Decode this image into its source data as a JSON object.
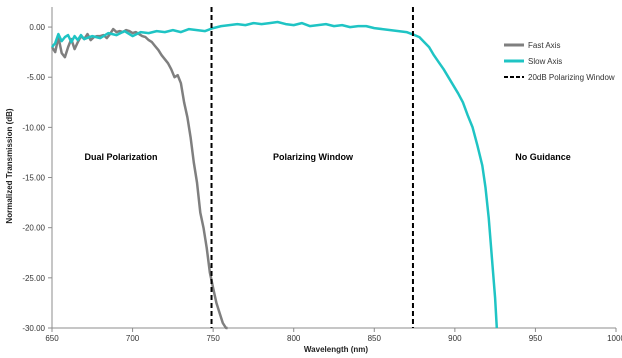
{
  "chart_data": {
    "type": "line",
    "title": "",
    "xlabel": "Wavelength (nm)",
    "ylabel": "Normalized Transmission  (dB)",
    "xlim": [
      650,
      1000
    ],
    "ylim": [
      -30,
      2
    ],
    "x_ticks": [
      "650",
      "700",
      "750",
      "800",
      "850",
      "900",
      "950",
      "1000"
    ],
    "y_ticks": [
      "0.00",
      "-5.00",
      "-10.00",
      "-15.00",
      "-20.00",
      "-25.00",
      "-30.00"
    ],
    "grid": false,
    "legend_position": "right",
    "series": [
      {
        "name": "Fast Axis",
        "color": "#7f7f7f",
        "style": "solid",
        "x": [
          650,
          652,
          654,
          656,
          658,
          660,
          662,
          664,
          666,
          668,
          670,
          672,
          674,
          676,
          678,
          680,
          682,
          684,
          686,
          688,
          690,
          692,
          694,
          696,
          698,
          700,
          702,
          704,
          706,
          708,
          710,
          712,
          714,
          716,
          718,
          720,
          722,
          724,
          726,
          728,
          730,
          732,
          734,
          736,
          738,
          740,
          742,
          744,
          746,
          748,
          750,
          752,
          754,
          756,
          758,
          759
        ],
        "values": [
          -2.0,
          -2.5,
          -1.0,
          -2.6,
          -3.0,
          -2.0,
          -1.2,
          -2.2,
          -1.5,
          -0.9,
          -1.2,
          -0.7,
          -1.3,
          -1.0,
          -0.9,
          -0.9,
          -0.8,
          -1.1,
          -0.7,
          -0.2,
          -0.5,
          -0.4,
          -0.5,
          -0.3,
          -0.4,
          -0.6,
          -0.5,
          -0.7,
          -0.9,
          -1.0,
          -1.3,
          -1.5,
          -1.9,
          -2.3,
          -2.8,
          -3.2,
          -3.6,
          -4.2,
          -5.0,
          -4.8,
          -5.6,
          -7.5,
          -9.0,
          -11.0,
          -13.5,
          -15.5,
          -18.5,
          -20.0,
          -22.0,
          -24.5,
          -26.0,
          -27.5,
          -28.5,
          -29.5,
          -30.0,
          -30.0
        ]
      },
      {
        "name": "Slow Axis",
        "color": "#1fc4c4",
        "style": "solid",
        "x": [
          650,
          652,
          654,
          656,
          658,
          660,
          662,
          664,
          666,
          668,
          670,
          675,
          680,
          685,
          690,
          695,
          700,
          705,
          710,
          715,
          720,
          725,
          730,
          735,
          740,
          745,
          750,
          755,
          760,
          765,
          770,
          775,
          780,
          785,
          790,
          795,
          800,
          805,
          810,
          815,
          820,
          825,
          830,
          835,
          840,
          845,
          850,
          855,
          860,
          865,
          870,
          875,
          878,
          881,
          884,
          887,
          890,
          893,
          896,
          899,
          902,
          905,
          908,
          911,
          914,
          917,
          919,
          921,
          923,
          925,
          926
        ],
        "values": [
          -2.0,
          -1.6,
          -0.7,
          -1.4,
          -1.0,
          -0.8,
          -1.5,
          -0.9,
          -1.3,
          -0.8,
          -1.2,
          -0.9,
          -1.1,
          -0.6,
          -0.8,
          -0.4,
          -0.9,
          -0.5,
          -0.6,
          -0.4,
          -0.5,
          -0.3,
          -0.5,
          -0.2,
          -0.3,
          -0.4,
          -0.1,
          0.1,
          0.2,
          0.3,
          0.2,
          0.4,
          0.3,
          0.4,
          0.5,
          0.3,
          0.2,
          0.4,
          0.1,
          0.2,
          0.3,
          0.1,
          0.2,
          0.0,
          0.1,
          0.1,
          -0.1,
          -0.2,
          -0.3,
          -0.4,
          -0.5,
          -0.8,
          -1.0,
          -1.5,
          -2.0,
          -2.8,
          -3.5,
          -4.2,
          -5.0,
          -5.8,
          -6.6,
          -7.5,
          -8.8,
          -10.0,
          -11.8,
          -13.8,
          -16.0,
          -19.0,
          -23.0,
          -27.0,
          -30.0
        ]
      },
      {
        "name": "20dB Polarizing Window",
        "color": "#000000",
        "style": "dashed",
        "x_lines": [
          749,
          874
        ]
      }
    ],
    "annotations": [
      {
        "text": "Dual Polarization",
        "color": "#8c8c8c"
      },
      {
        "text": "Polarizing Window",
        "color": "#000000"
      },
      {
        "text": "No Guidance",
        "color": "#1fc4c4"
      }
    ]
  }
}
